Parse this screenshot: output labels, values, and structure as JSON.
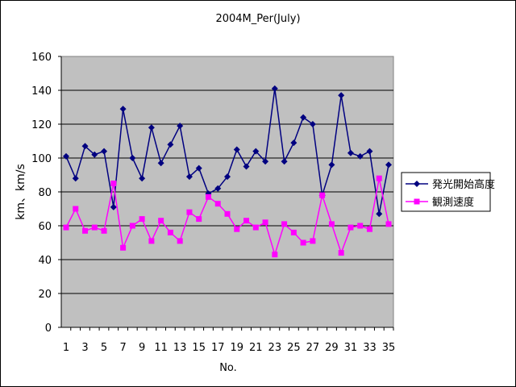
{
  "chart_data": {
    "type": "line",
    "title": "2004M_Per(July)",
    "xlabel": "No.",
    "ylabel": "km、km/s",
    "ylim": [
      0,
      160
    ],
    "yticks": [
      0,
      20,
      40,
      60,
      80,
      100,
      120,
      140,
      160
    ],
    "x": [
      1,
      2,
      3,
      4,
      5,
      6,
      7,
      8,
      9,
      10,
      11,
      12,
      13,
      14,
      15,
      16,
      17,
      18,
      19,
      20,
      21,
      22,
      23,
      24,
      25,
      26,
      27,
      28,
      29,
      30,
      31,
      32,
      33,
      34,
      35
    ],
    "xtick_labels": [
      "1",
      "3",
      "5",
      "7",
      "9",
      "11",
      "13",
      "15",
      "17",
      "19",
      "21",
      "23",
      "25",
      "27",
      "29",
      "31",
      "33",
      "35"
    ],
    "grid": "horizontal",
    "legend_position": "right",
    "background": "#c0c0c0",
    "series": [
      {
        "name": "発光開始高度",
        "color": "#000080",
        "marker": "diamond",
        "values": [
          101,
          88,
          107,
          102,
          104,
          71,
          129,
          100,
          88,
          118,
          97,
          108,
          119,
          89,
          94,
          79,
          82,
          89,
          105,
          95,
          104,
          98,
          141,
          98,
          109,
          124,
          120,
          78,
          96,
          137,
          103,
          101,
          104,
          67,
          96
        ]
      },
      {
        "name": "観測速度",
        "color": "#ff00ff",
        "marker": "square",
        "values": [
          59,
          70,
          57,
          59,
          57,
          85,
          47,
          60,
          64,
          51,
          63,
          56,
          51,
          68,
          64,
          77,
          73,
          67,
          58,
          63,
          59,
          62,
          43,
          61,
          56,
          50,
          51,
          78,
          61,
          44,
          59,
          60,
          58,
          88,
          61
        ]
      }
    ]
  }
}
